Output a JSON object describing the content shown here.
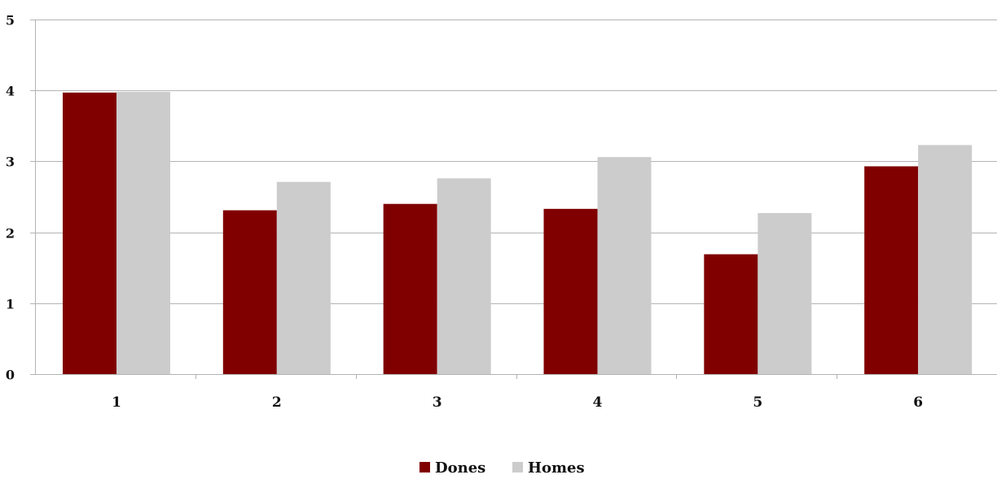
{
  "chart_data": {
    "type": "bar",
    "categories": [
      "1",
      "2",
      "3",
      "4",
      "5",
      "6"
    ],
    "series": [
      {
        "name": "Dones",
        "color": "#800000",
        "values": [
          3.97,
          2.31,
          2.4,
          2.33,
          1.69,
          2.93
        ]
      },
      {
        "name": "Homes",
        "color": "#cccccc",
        "values": [
          3.98,
          2.71,
          2.76,
          3.06,
          2.27,
          3.23
        ]
      }
    ],
    "ylim": [
      0,
      5
    ],
    "yticks": [
      "0",
      "1",
      "2",
      "3",
      "4",
      "5"
    ],
    "grid": true,
    "legend_position": "bottom-center",
    "title": "",
    "xlabel": "",
    "ylabel": ""
  }
}
